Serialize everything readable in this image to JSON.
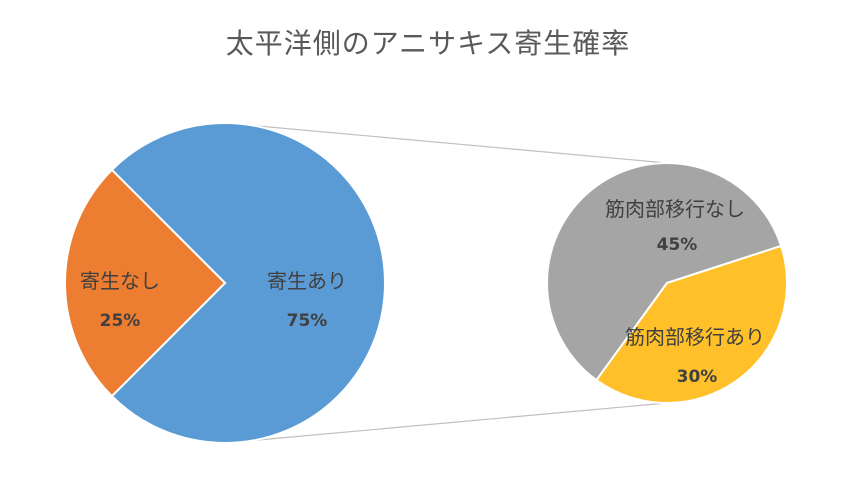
{
  "chart_data": {
    "type": "pie",
    "subtype": "pie-of-pie",
    "title": "太平洋側のアニサキス寄生確率",
    "main_pie": {
      "slices": [
        {
          "label": "寄生あり",
          "value": 75,
          "value_label": "75%",
          "color": "#5b9bd5"
        },
        {
          "label": "寄生なし",
          "value": 25,
          "value_label": "25%",
          "color": "#ed7d31"
        }
      ]
    },
    "secondary_pie": {
      "breakdown_of": "寄生あり",
      "slices": [
        {
          "label": "筋肉部移行なし",
          "value": 45,
          "value_label": "45%",
          "color": "#a5a5a5"
        },
        {
          "label": "筋肉部移行あり",
          "value": 30,
          "value_label": "30%",
          "color": "#ffc02a"
        }
      ]
    },
    "connector_color": "#bfbfbf",
    "legend": "none"
  }
}
